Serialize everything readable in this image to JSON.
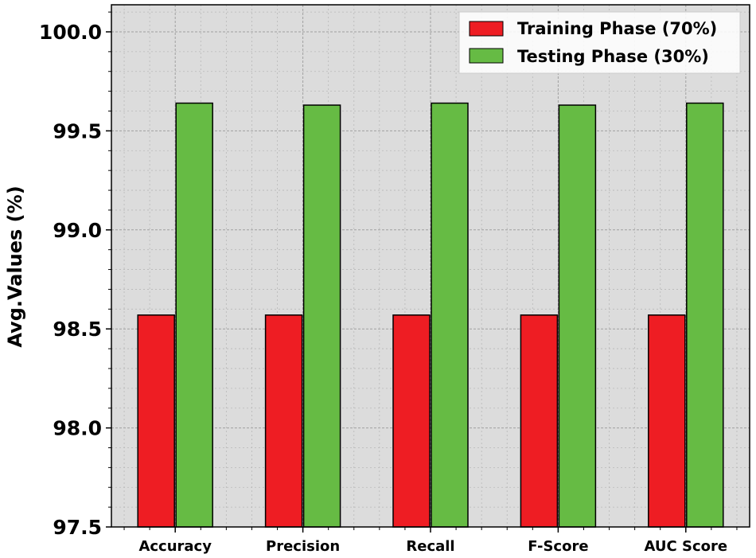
{
  "chart_data": {
    "type": "bar",
    "title": "",
    "xlabel": "",
    "ylabel": "Avg.Values (%)",
    "ylim": [
      97.5,
      100.1
    ],
    "yticks": [
      "97.5",
      "98.0",
      "98.5",
      "99.0",
      "99.5",
      "100.0"
    ],
    "categories": [
      "Accuracy",
      "Precision",
      "Recall",
      "F-Score",
      "AUC Score"
    ],
    "series": [
      {
        "name": "Training Phase (70%)",
        "color": "#ee1d23",
        "values": [
          98.57,
          98.57,
          98.57,
          98.57,
          98.57
        ]
      },
      {
        "name": "Testing Phase (30%)",
        "color": "#66bb44",
        "values": [
          99.64,
          99.63,
          99.64,
          99.63,
          99.64
        ]
      }
    ],
    "grid": true,
    "legend": "top-right",
    "background": "#dcdcdc"
  }
}
